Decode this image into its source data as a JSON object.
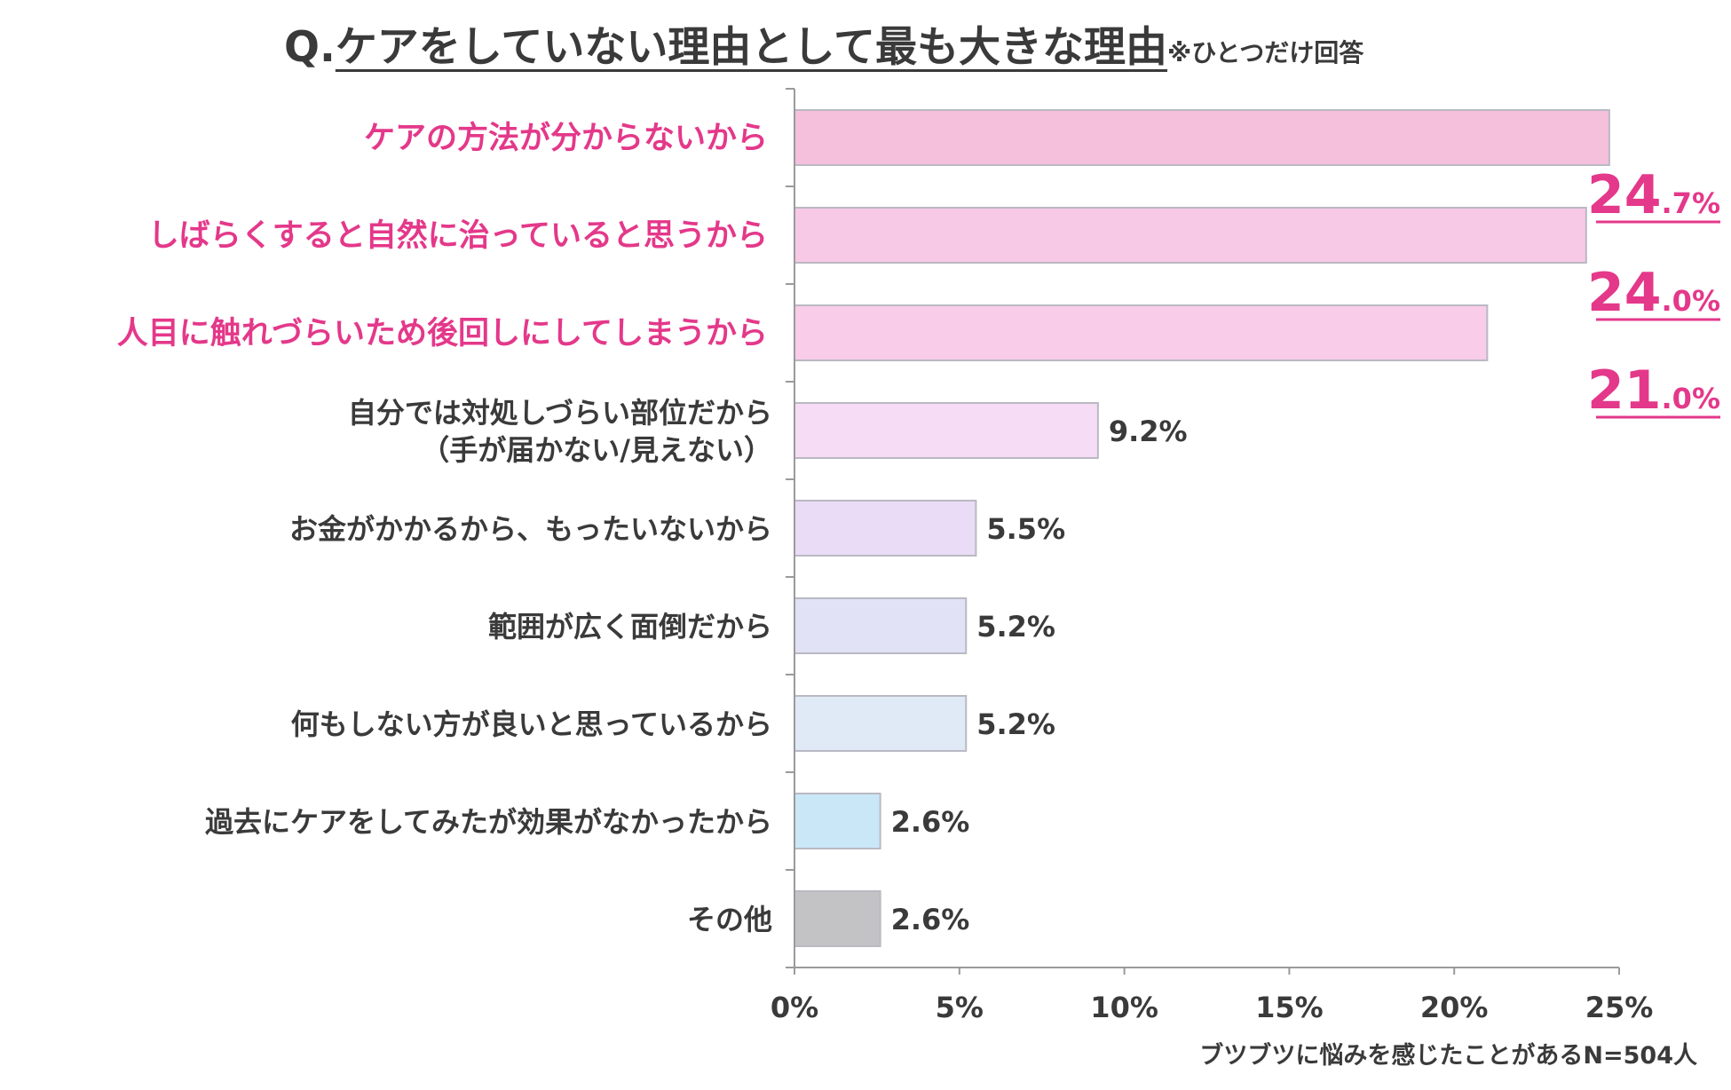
{
  "title": {
    "prefix": "Q.",
    "main": "ケアをしていない理由として最も大きな理由",
    "note": "※ひとつだけ回答"
  },
  "footnote": "ブツブツに悩みを感じたことがあるN=504人",
  "colors": {
    "highlight_text": "#e4388a",
    "normal_text": "#3a3a3a",
    "axis": "#9a9a9a"
  },
  "chart_data": {
    "type": "bar",
    "orientation": "horizontal",
    "categories": [
      [
        "ケアの方法が分からないから"
      ],
      [
        "しばらくすると自然に治っていると思うから"
      ],
      [
        "人目に触れづらいため後回しにしてしまうから"
      ],
      [
        "自分では対処しづらい部位だから",
        "（手が届かない/見えない）"
      ],
      [
        "お金がかかるから、もったいないから"
      ],
      [
        "範囲が広く面倒だから"
      ],
      [
        "何もしない方が良いと思っているから"
      ],
      [
        "過去にケアをしてみたが効果がなかったから"
      ],
      [
        "その他"
      ]
    ],
    "values": [
      24.7,
      24.0,
      21.0,
      9.2,
      5.5,
      5.2,
      5.2,
      2.6,
      2.6
    ],
    "value_labels": [
      {
        "int": "24",
        "dec": ".7%"
      },
      {
        "int": "24",
        "dec": ".0%"
      },
      {
        "int": "21",
        "dec": ".0%"
      },
      {
        "text": "9.2%"
      },
      {
        "text": "5.5%"
      },
      {
        "text": "5.2%"
      },
      {
        "text": "5.2%"
      },
      {
        "text": "2.6%"
      },
      {
        "text": "2.6%"
      }
    ],
    "highlighted": [
      true,
      true,
      true,
      false,
      false,
      false,
      false,
      false,
      false
    ],
    "bar_colors": [
      "#f4c0dc",
      "#f8c9e6",
      "#f9cde9",
      "#f7dcf6",
      "#eadcf7",
      "#e2e2f7",
      "#dfeaf6",
      "#cae7f7",
      "#c3c3c6"
    ],
    "xlim": [
      0,
      25
    ],
    "xticks": [
      "0%",
      "5%",
      "10%",
      "15%",
      "20%",
      "25%"
    ],
    "grid": false
  }
}
